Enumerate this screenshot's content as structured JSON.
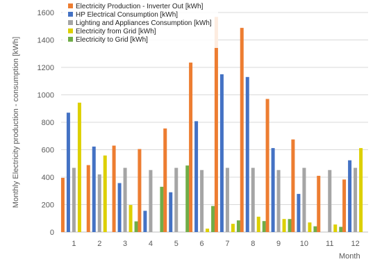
{
  "chart_data": {
    "type": "bar",
    "title": "",
    "xlabel": "Month",
    "ylabel": "Monthly Electricity production - consumption [kWh]",
    "categories": [
      "1",
      "2",
      "3",
      "4",
      "5",
      "6",
      "7",
      "8",
      "9",
      "10",
      "11",
      "12"
    ],
    "ylim": [
      0,
      1600
    ],
    "y_ticks": [
      0,
      200,
      400,
      600,
      800,
      1000,
      1200,
      1400,
      1600
    ],
    "grid": true,
    "legend_position": "top-left",
    "series": [
      {
        "name": "Electricity Production - Inverter Out [kWh]",
        "color": "#ED7D31",
        "values": [
          395,
          488,
          630,
          605,
          755,
          1235,
          1568,
          1488,
          970,
          675,
          410,
          383
        ]
      },
      {
        "name": "HP Electrical Consumption [kWh]",
        "color": "#4472C4",
        "values": [
          870,
          623,
          357,
          155,
          290,
          808,
          1150,
          1130,
          612,
          278,
          0,
          523
        ]
      },
      {
        "name": "Lighting and Appliances Consumption [kWh]",
        "color": "#A5A5A5",
        "values": [
          468,
          420,
          468,
          452,
          468,
          452,
          468,
          468,
          452,
          468,
          452,
          468
        ]
      },
      {
        "name": "Electricity from Grid [kWh]",
        "color": "#DDD000",
        "values": [
          943,
          558,
          197,
          0,
          0,
          25,
          60,
          112,
          95,
          70,
          55,
          612
        ]
      },
      {
        "name": "Electricity to Grid [kWh]",
        "color": "#70AD47",
        "values": [
          0,
          0,
          78,
          330,
          485,
          190,
          85,
          80,
          95,
          42,
          38,
          0
        ]
      }
    ]
  }
}
